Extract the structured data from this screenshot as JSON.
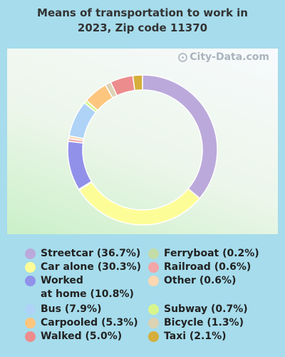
{
  "title_lines": [
    "Means of transportation to work in",
    "2023, Zip code 11370"
  ],
  "watermark": "City-Data.com",
  "chart_data": {
    "type": "pie",
    "subtype": "donut",
    "title": "Means of transportation to work in 2023, Zip code 11370",
    "unit": "%",
    "legend_placement": "bottom",
    "slices": [
      {
        "label": "Streetcar",
        "legend": "Streetcar (36.7%)",
        "value": 36.7,
        "color": "#bba9db"
      },
      {
        "label": "Car alone",
        "legend": "Car alone (30.3%)",
        "value": 30.3,
        "color": "#fdfd98"
      },
      {
        "label": "Ferryboat",
        "legend": "Ferryboat (0.2%)",
        "value": 0.2,
        "color": "#c4dca6"
      },
      {
        "label": "Worked at home",
        "legend": "Worked\nat home (10.8%)",
        "value": 10.8,
        "color": "#9191ea"
      },
      {
        "label": "Railroad",
        "legend": "Railroad (0.6%)",
        "value": 0.6,
        "color": "#f2a6a6"
      },
      {
        "label": "Other",
        "legend": "Other (0.6%)",
        "value": 0.6,
        "color": "#fcd7b1"
      },
      {
        "label": "Bus",
        "legend": "Bus (7.9%)",
        "value": 7.9,
        "color": "#aed3f7"
      },
      {
        "label": "Subway",
        "legend": "Subway (0.7%)",
        "value": 0.7,
        "color": "#d8f58c"
      },
      {
        "label": "Carpooled",
        "legend": "Carpooled (5.3%)",
        "value": 5.3,
        "color": "#fdc67f"
      },
      {
        "label": "Bicycle",
        "legend": "Bicycle (1.3%)",
        "value": 1.3,
        "color": "#dcd2b4"
      },
      {
        "label": "Walked",
        "legend": "Walked (5.0%)",
        "value": 5.0,
        "color": "#ec8c8c"
      },
      {
        "label": "Taxi",
        "legend": "Taxi (2.1%)",
        "value": 2.1,
        "color": "#d6ae3c"
      }
    ]
  }
}
